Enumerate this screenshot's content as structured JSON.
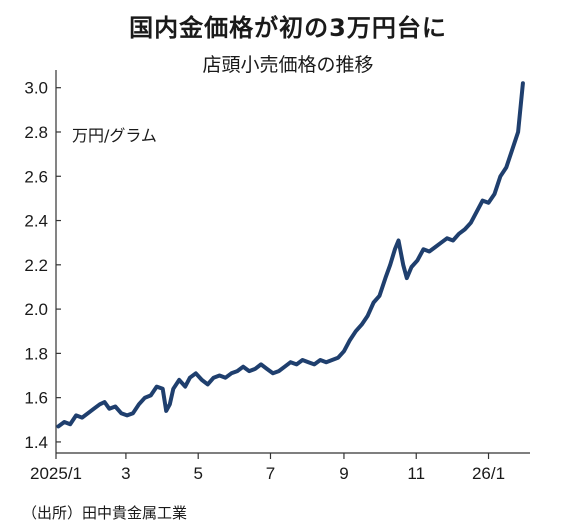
{
  "header": {
    "title": "国内金価格が初の3万円台に",
    "subtitle": "店頭小売価格の推移"
  },
  "unit_label": "万円/グラム",
  "source": "（出所）田中貴金属工業",
  "colors": {
    "line": "#1f3f6e",
    "axis": "#333333",
    "text": "#1a1a1a"
  },
  "chart_data": {
    "type": "line",
    "title": "国内金価格が初の3万円台に",
    "subtitle": "店頭小売価格の推移",
    "ylabel": "万円/グラム",
    "ylim": [
      1.35,
      3.08
    ],
    "y_ticks": [
      1.4,
      1.6,
      1.8,
      2.0,
      2.2,
      2.4,
      2.6,
      2.8,
      3.0
    ],
    "y_tick_labels": [
      "1.4",
      "1.6",
      "1.8",
      "2.0",
      "2.2",
      "2.4",
      "2.6",
      "2.8",
      "3.0"
    ],
    "xlim": [
      "2025-01-01",
      "2026-02-05"
    ],
    "x_ticks": [
      "2025-01-01",
      "2025-03-01",
      "2025-05-01",
      "2025-07-01",
      "2025-09-01",
      "2025-11-01",
      "2026-01-01"
    ],
    "x_tick_labels": [
      "2025/1",
      "3",
      "5",
      "7",
      "9",
      "11",
      "26/1"
    ],
    "grid": false,
    "series": [
      {
        "x": [
          "2025-01-03",
          "2025-01-08",
          "2025-01-13",
          "2025-01-18",
          "2025-01-23",
          "2025-01-28",
          "2025-02-02",
          "2025-02-07",
          "2025-02-11",
          "2025-02-15",
          "2025-02-20",
          "2025-02-25",
          "2025-03-02",
          "2025-03-07",
          "2025-03-12",
          "2025-03-17",
          "2025-03-22",
          "2025-03-27",
          "2025-04-01",
          "2025-04-04",
          "2025-04-07",
          "2025-04-10",
          "2025-04-15",
          "2025-04-20",
          "2025-04-24",
          "2025-04-29",
          "2025-05-04",
          "2025-05-09",
          "2025-05-14",
          "2025-05-19",
          "2025-05-24",
          "2025-05-29",
          "2025-06-03",
          "2025-06-08",
          "2025-06-13",
          "2025-06-18",
          "2025-06-23",
          "2025-06-28",
          "2025-07-03",
          "2025-07-08",
          "2025-07-13",
          "2025-07-18",
          "2025-07-23",
          "2025-07-28",
          "2025-08-02",
          "2025-08-07",
          "2025-08-12",
          "2025-08-17",
          "2025-08-22",
          "2025-08-27",
          "2025-09-01",
          "2025-09-06",
          "2025-09-11",
          "2025-09-16",
          "2025-09-21",
          "2025-09-26",
          "2025-10-01",
          "2025-10-06",
          "2025-10-10",
          "2025-10-14",
          "2025-10-17",
          "2025-10-21",
          "2025-10-24",
          "2025-10-28",
          "2025-11-02",
          "2025-11-07",
          "2025-11-12",
          "2025-11-17",
          "2025-11-22",
          "2025-11-27",
          "2025-12-02",
          "2025-12-07",
          "2025-12-12",
          "2025-12-17",
          "2025-12-22",
          "2025-12-27",
          "2026-01-01",
          "2026-01-06",
          "2026-01-11",
          "2026-01-16",
          "2026-01-21",
          "2026-01-26",
          "2026-01-30"
        ],
        "values": [
          1.47,
          1.49,
          1.48,
          1.52,
          1.51,
          1.53,
          1.55,
          1.57,
          1.58,
          1.55,
          1.56,
          1.53,
          1.52,
          1.53,
          1.57,
          1.6,
          1.61,
          1.65,
          1.64,
          1.54,
          1.57,
          1.64,
          1.68,
          1.65,
          1.69,
          1.71,
          1.68,
          1.66,
          1.69,
          1.7,
          1.69,
          1.71,
          1.72,
          1.74,
          1.72,
          1.73,
          1.75,
          1.73,
          1.71,
          1.72,
          1.74,
          1.76,
          1.75,
          1.77,
          1.76,
          1.75,
          1.77,
          1.76,
          1.77,
          1.78,
          1.81,
          1.86,
          1.9,
          1.93,
          1.97,
          2.03,
          2.06,
          2.14,
          2.2,
          2.27,
          2.31,
          2.2,
          2.14,
          2.19,
          2.22,
          2.27,
          2.26,
          2.28,
          2.3,
          2.32,
          2.31,
          2.34,
          2.36,
          2.39,
          2.44,
          2.49,
          2.48,
          2.52,
          2.6,
          2.64,
          2.72,
          2.8,
          3.02
        ]
      }
    ]
  }
}
